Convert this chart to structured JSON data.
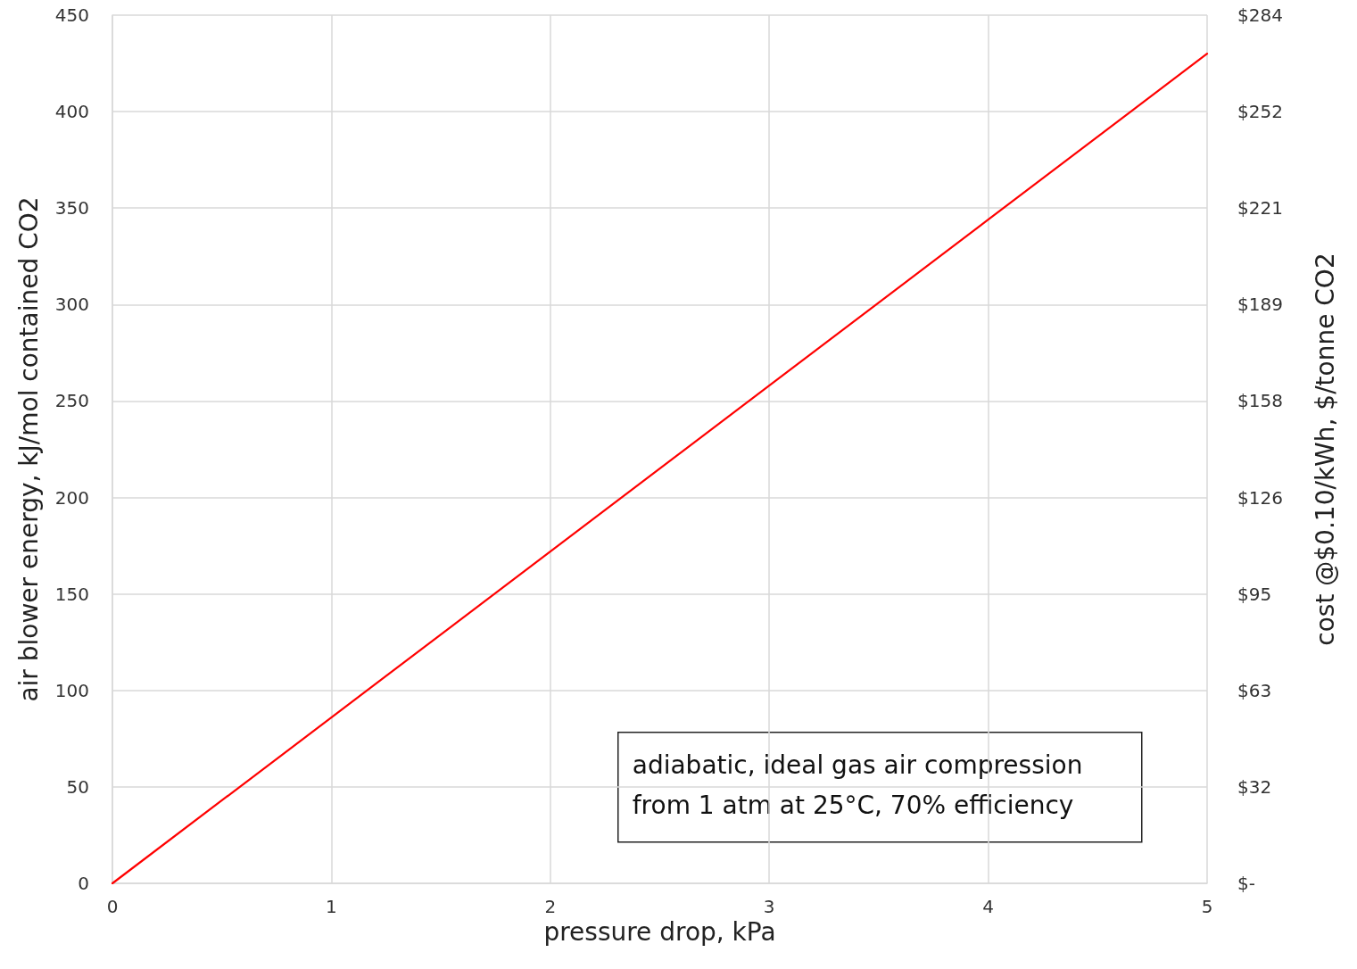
{
  "chart_data": {
    "type": "line",
    "xlabel": "pressure drop, kPa",
    "ylabel": "air blower energy, kJ/mol contained CO2",
    "y2label": "cost @$0.10/kWh, $/tonne CO2",
    "x": [
      0,
      1,
      2,
      3,
      4,
      5
    ],
    "series": [
      {
        "color": "#ff0000",
        "values": [
          0,
          86,
          172,
          258,
          344,
          430
        ]
      }
    ],
    "xlim": [
      0,
      5
    ],
    "xticks": [
      0,
      1,
      2,
      3,
      4,
      5
    ],
    "ylim": [
      0,
      450
    ],
    "yticks": [
      0,
      50,
      100,
      150,
      200,
      250,
      300,
      350,
      400,
      450
    ],
    "y2lim": [
      0,
      283.95
    ],
    "y2ticks": [
      {
        "value": 0,
        "label": "$-"
      },
      {
        "value": 31.55,
        "label": "$32"
      },
      {
        "value": 63.1,
        "label": "$63"
      },
      {
        "value": 94.65,
        "label": "$95"
      },
      {
        "value": 126.2,
        "label": "$126"
      },
      {
        "value": 157.75,
        "label": "$158"
      },
      {
        "value": 189.3,
        "label": "$189"
      },
      {
        "value": 220.85,
        "label": "$221"
      },
      {
        "value": 252.4,
        "label": "$252"
      },
      {
        "value": 283.95,
        "label": "$284"
      }
    ],
    "grid": true,
    "marker": "none",
    "line_style": "solid",
    "annotations": [
      "adiabatic, ideal gas air compression\nfrom 1 atm at 25°C, 70% efficiency"
    ]
  }
}
